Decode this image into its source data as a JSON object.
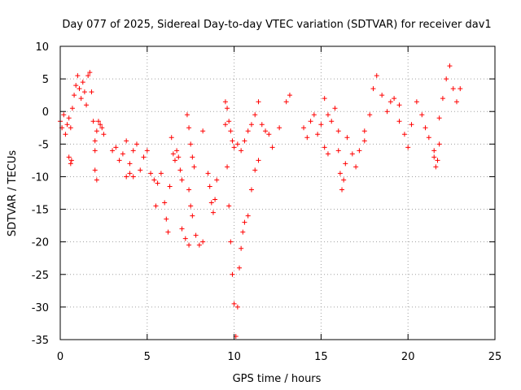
{
  "chart_data": {
    "type": "scatter",
    "title": "Day 077 of 2025, Sidereal Day-to-day VTEC variation (SDTVAR) for receiver dav1",
    "xlabel": "GPS time / hours",
    "ylabel": "SDTVAR / TECUs",
    "xlim": [
      0,
      25
    ],
    "ylim": [
      -35,
      10
    ],
    "xticks": [
      0,
      5,
      10,
      15,
      20,
      25
    ],
    "yticks": [
      -35,
      -30,
      -25,
      -20,
      -15,
      -10,
      -5,
      0,
      5,
      10
    ],
    "grid": true,
    "marker": "+",
    "color": "#ff0000",
    "series": [
      {
        "name": "SDTVAR",
        "segments": [
          {
            "x": [
              0.0,
              0.1,
              0.2,
              0.3,
              0.4,
              0.5,
              0.6,
              0.7,
              0.8,
              0.9,
              1.0,
              1.1,
              1.2,
              1.3,
              1.4,
              1.5,
              1.6,
              1.7,
              1.8,
              1.9,
              2.0
            ],
            "y": [
              -1.5,
              -2.5,
              -0.5,
              -3.5,
              -2.0,
              -1.0,
              -2.5,
              0.5,
              2.5,
              4.0,
              5.5,
              3.5,
              2.0,
              4.5,
              3.0,
              1.0,
              5.5,
              6.0,
              3.0,
              -1.5,
              -4.5
            ]
          },
          {
            "x": [
              0.5,
              0.6,
              0.65
            ],
            "y": [
              -7.0,
              -8.0,
              -7.5
            ]
          },
          {
            "x": [
              2.0,
              2.1,
              2.2,
              2.3,
              2.4,
              2.5
            ],
            "y": [
              -6.0,
              -3.0,
              -1.5,
              -2.0,
              -2.5,
              -3.5
            ]
          },
          {
            "x": [
              2.0,
              2.1
            ],
            "y": [
              -9.0,
              -10.5
            ]
          },
          {
            "x": [
              3.0,
              3.2,
              3.4,
              3.6,
              3.8,
              4.0,
              4.2,
              4.4,
              4.6,
              4.8,
              5.0,
              5.2,
              5.4,
              5.6,
              5.8
            ],
            "y": [
              -6.0,
              -5.5,
              -7.5,
              -6.5,
              -4.5,
              -8.0,
              -6.0,
              -5.0,
              -9.0,
              -7.0,
              -6.0,
              -9.5,
              -10.5,
              -11.0,
              -9.5
            ]
          },
          {
            "x": [
              3.8,
              4.0,
              4.2
            ],
            "y": [
              -10.0,
              -9.5,
              -10.0
            ]
          },
          {
            "x": [
              5.5
            ],
            "y": [
              -14.5
            ]
          },
          {
            "x": [
              6.0,
              6.1,
              6.2,
              6.3,
              6.4,
              6.5,
              6.6,
              6.7,
              6.8,
              6.9,
              7.0
            ],
            "y": [
              -14.0,
              -16.5,
              -18.5,
              -11.5,
              -4.0,
              -6.5,
              -7.5,
              -6.0,
              -7.0,
              -9.0,
              -10.5
            ]
          },
          {
            "x": [
              7.0,
              7.2,
              7.4
            ],
            "y": [
              -18.0,
              -19.5,
              -20.5
            ]
          },
          {
            "x": [
              7.3,
              7.4,
              7.5,
              7.6,
              7.7
            ],
            "y": [
              -0.5,
              -2.5,
              -5.0,
              -7.0,
              -8.5
            ]
          },
          {
            "x": [
              7.4,
              7.5,
              7.6
            ],
            "y": [
              -12.0,
              -14.5,
              -16.0
            ]
          },
          {
            "x": [
              7.8,
              8.0,
              8.2
            ],
            "y": [
              -19.0,
              -20.5,
              -20.0
            ]
          },
          {
            "x": [
              8.2
            ],
            "y": [
              -3.0
            ]
          },
          {
            "x": [
              8.5,
              8.6,
              8.7,
              8.8,
              8.9,
              9.0
            ],
            "y": [
              -9.5,
              -11.5,
              -14.0,
              -15.5,
              -13.5,
              -10.5
            ]
          },
          {
            "x": [
              9.5,
              9.6,
              9.7,
              9.8,
              9.9,
              10.0,
              10.1,
              10.2,
              10.3,
              10.4,
              10.5
            ],
            "y": [
              -2.0,
              -8.5,
              -14.5,
              -20.0,
              -25.0,
              -29.5,
              -34.5,
              -30.0,
              -24.0,
              -21.0,
              -18.5
            ]
          },
          {
            "x": [
              9.5,
              9.6,
              9.7,
              9.8,
              9.9,
              10.0,
              10.2,
              10.4,
              10.6,
              10.8,
              11.0,
              11.2,
              11.4,
              11.6,
              11.8
            ],
            "y": [
              1.5,
              0.5,
              -1.5,
              -3.0,
              -4.5,
              -5.5,
              -5.0,
              -6.0,
              -4.5,
              -3.0,
              -2.0,
              -0.5,
              1.5,
              -2.0,
              -3.0
            ]
          },
          {
            "x": [
              10.6,
              10.8,
              11.0,
              11.2,
              11.4
            ],
            "y": [
              -17.0,
              -16.0,
              -12.0,
              -9.0,
              -7.5
            ]
          },
          {
            "x": [
              12.0,
              12.2
            ],
            "y": [
              -3.5,
              -5.5
            ]
          },
          {
            "x": [
              12.6,
              13.0,
              13.2
            ],
            "y": [
              -2.5,
              1.5,
              2.5
            ]
          },
          {
            "x": [
              14.0,
              14.2,
              14.4,
              14.6,
              14.8,
              15.0,
              15.2,
              15.4,
              15.6,
              15.8,
              16.0
            ],
            "y": [
              -2.5,
              -4.0,
              -1.5,
              -0.5,
              -3.5,
              -2.0,
              2.0,
              -0.5,
              -1.5,
              0.5,
              -3.0
            ]
          },
          {
            "x": [
              15.2,
              15.4
            ],
            "y": [
              -5.5,
              -6.5
            ]
          },
          {
            "x": [
              16.0,
              16.1,
              16.2,
              16.3,
              16.4
            ],
            "y": [
              -6.0,
              -9.5,
              -12.0,
              -10.5,
              -8.0
            ]
          },
          {
            "x": [
              16.5,
              16.8,
              17.0,
              17.2,
              17.5
            ],
            "y": [
              -4.0,
              -6.5,
              -8.5,
              -6.0,
              -3.0
            ]
          },
          {
            "x": [
              17.5,
              17.8,
              18.0,
              18.2,
              18.5,
              18.8,
              19.0,
              19.2,
              19.5
            ],
            "y": [
              -4.5,
              -0.5,
              3.5,
              5.5,
              2.5,
              0.0,
              1.5,
              2.0,
              1.0
            ]
          },
          {
            "x": [
              19.5,
              19.8,
              20.0,
              20.2,
              20.5,
              20.8,
              21.0,
              21.2,
              21.5
            ],
            "y": [
              -1.5,
              -3.5,
              -5.5,
              -2.0,
              1.5,
              -0.5,
              -2.5,
              -4.0,
              -6.0
            ]
          },
          {
            "x": [
              21.5,
              21.6,
              21.7,
              21.8
            ],
            "y": [
              -7.0,
              -8.5,
              -7.5,
              -5.0
            ]
          },
          {
            "x": [
              21.8,
              22.0,
              22.2,
              22.4,
              22.6,
              22.8,
              23.0
            ],
            "y": [
              -1.0,
              2.0,
              5.0,
              7.0,
              3.5,
              1.5,
              3.5
            ]
          }
        ]
      }
    ]
  }
}
